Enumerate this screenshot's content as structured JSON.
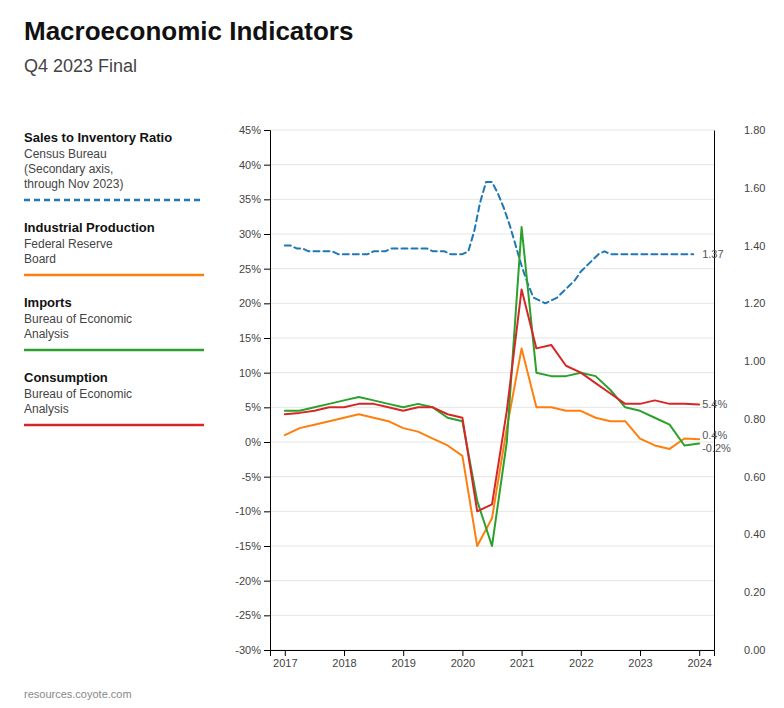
{
  "chart_data": {
    "type": "line",
    "title": "Macroeconomic Indicators",
    "subtitle": "Q4 2023 Final",
    "footer": "resources.coyote.com",
    "legend": "left",
    "grid": true,
    "xlim": [
      2016.75,
      2024.25
    ],
    "xticks": [
      2017,
      2018,
      2019,
      2020,
      2021,
      2022,
      2023,
      2024
    ],
    "ylim": [
      -30,
      45
    ],
    "yticks": [
      {
        "value": -30,
        "label": "-30%"
      },
      {
        "value": -25,
        "label": "-25%"
      },
      {
        "value": -20,
        "label": "-20%"
      },
      {
        "value": -15,
        "label": "-15%"
      },
      {
        "value": -10,
        "label": "-10%"
      },
      {
        "value": -5,
        "label": "-5%"
      },
      {
        "value": 0,
        "label": "0%"
      },
      {
        "value": 5,
        "label": "5%"
      },
      {
        "value": 10,
        "label": "10%"
      },
      {
        "value": 15,
        "label": "15%"
      },
      {
        "value": 20,
        "label": "20%"
      },
      {
        "value": 25,
        "label": "25%"
      },
      {
        "value": 30,
        "label": "30%"
      },
      {
        "value": 35,
        "label": "35%"
      },
      {
        "value": 40,
        "label": "40%"
      },
      {
        "value": 45,
        "label": "45%"
      }
    ],
    "y2lim": [
      0.0,
      1.8
    ],
    "y2ticks": [
      {
        "value": 0.0,
        "label": "0.00"
      },
      {
        "value": 0.2,
        "label": "0.20"
      },
      {
        "value": 0.4,
        "label": "0.40"
      },
      {
        "value": 0.6,
        "label": "0.60"
      },
      {
        "value": 0.8,
        "label": "0.80"
      },
      {
        "value": 1.0,
        "label": "1.00"
      },
      {
        "value": 1.2,
        "label": "1.20"
      },
      {
        "value": 1.4,
        "label": "1.40"
      },
      {
        "value": 1.6,
        "label": "1.60"
      },
      {
        "value": 1.8,
        "label": "1.80"
      }
    ],
    "series": [
      {
        "name": "Sales to Inventory Ratio",
        "description": [
          "Census Bureau",
          "(Secondary axis,",
          "through Nov 2023)"
        ],
        "axis": "y2",
        "line_style": "dashed",
        "x": [
          2017.0,
          2017.1,
          2017.2,
          2017.3,
          2017.4,
          2017.5,
          2017.6,
          2017.7,
          2017.8,
          2017.9,
          2018.0,
          2018.1,
          2018.2,
          2018.3,
          2018.4,
          2018.5,
          2018.6,
          2018.7,
          2018.8,
          2018.9,
          2019.0,
          2019.1,
          2019.2,
          2019.3,
          2019.4,
          2019.5,
          2019.6,
          2019.7,
          2019.8,
          2019.9,
          2020.0,
          2020.1,
          2020.2,
          2020.3,
          2020.4,
          2020.5,
          2020.6,
          2020.7,
          2020.8,
          2020.9,
          2021.0,
          2021.1,
          2021.2,
          2021.3,
          2021.4,
          2021.5,
          2021.6,
          2021.7,
          2021.8,
          2021.9,
          2022.0,
          2022.1,
          2022.2,
          2022.3,
          2022.4,
          2022.5,
          2022.6,
          2022.7,
          2022.8,
          2022.9,
          2023.0,
          2023.1,
          2023.2,
          2023.3,
          2023.4,
          2023.5,
          2023.6,
          2023.7,
          2023.8,
          2023.9
        ],
        "values": [
          1.4,
          1.4,
          1.39,
          1.39,
          1.38,
          1.38,
          1.38,
          1.38,
          1.38,
          1.37,
          1.37,
          1.37,
          1.37,
          1.37,
          1.37,
          1.38,
          1.38,
          1.38,
          1.39,
          1.39,
          1.39,
          1.39,
          1.39,
          1.39,
          1.39,
          1.38,
          1.38,
          1.38,
          1.37,
          1.37,
          1.37,
          1.38,
          1.45,
          1.55,
          1.62,
          1.62,
          1.58,
          1.53,
          1.47,
          1.4,
          1.33,
          1.27,
          1.22,
          1.21,
          1.2,
          1.21,
          1.22,
          1.24,
          1.26,
          1.28,
          1.31,
          1.33,
          1.35,
          1.37,
          1.38,
          1.37,
          1.37,
          1.37,
          1.37,
          1.37,
          1.37,
          1.37,
          1.37,
          1.37,
          1.37,
          1.37,
          1.37,
          1.37,
          1.37,
          1.37
        ]
      },
      {
        "name": "Industrial Production",
        "description": [
          "Federal Reserve",
          "Board"
        ],
        "x": [
          2017.0,
          2017.25,
          2017.5,
          2017.75,
          2018.0,
          2018.25,
          2018.5,
          2018.75,
          2019.0,
          2019.25,
          2019.5,
          2019.75,
          2020.0,
          2020.25,
          2020.5,
          2020.75,
          2021.0,
          2021.25,
          2021.5,
          2021.75,
          2022.0,
          2022.25,
          2022.5,
          2022.75,
          2023.0,
          2023.25,
          2023.5,
          2023.75,
          2024.0
        ],
        "values": [
          1.0,
          2.0,
          2.5,
          3.0,
          3.5,
          4.0,
          3.5,
          3.0,
          2.0,
          1.5,
          0.5,
          -0.5,
          -2.0,
          -15.0,
          -11.0,
          2.0,
          13.5,
          5.0,
          5.0,
          4.5,
          4.5,
          3.5,
          3.0,
          3.0,
          0.5,
          -0.5,
          -1.0,
          0.5,
          0.4
        ]
      },
      {
        "name": "Imports",
        "description": [
          "Bureau of Economic",
          "Analysis"
        ],
        "x": [
          2017.0,
          2017.25,
          2017.5,
          2017.75,
          2018.0,
          2018.25,
          2018.5,
          2018.75,
          2019.0,
          2019.25,
          2019.5,
          2019.75,
          2020.0,
          2020.25,
          2020.5,
          2020.75,
          2021.0,
          2021.25,
          2021.5,
          2021.75,
          2022.0,
          2022.25,
          2022.5,
          2022.75,
          2023.0,
          2023.25,
          2023.5,
          2023.75,
          2024.0
        ],
        "values": [
          4.5,
          4.5,
          5.0,
          5.5,
          6.0,
          6.5,
          6.0,
          5.5,
          5.0,
          5.5,
          5.0,
          3.5,
          3.0,
          -8.5,
          -15.0,
          0.0,
          31.0,
          10.0,
          9.5,
          9.5,
          10.0,
          9.5,
          7.5,
          5.0,
          4.5,
          3.5,
          2.5,
          -0.5,
          -0.2
        ]
      },
      {
        "name": "Consumption",
        "description": [
          "Bureau of Economic",
          "Analysis"
        ],
        "x": [
          2017.0,
          2017.25,
          2017.5,
          2017.75,
          2018.0,
          2018.25,
          2018.5,
          2018.75,
          2019.0,
          2019.25,
          2019.5,
          2019.75,
          2020.0,
          2020.25,
          2020.5,
          2020.75,
          2021.0,
          2021.25,
          2021.5,
          2021.75,
          2022.0,
          2022.25,
          2022.5,
          2022.75,
          2023.0,
          2023.25,
          2023.5,
          2023.75,
          2024.0
        ],
        "values": [
          4.0,
          4.2,
          4.5,
          5.0,
          5.0,
          5.5,
          5.5,
          5.0,
          4.5,
          5.0,
          5.0,
          4.0,
          3.5,
          -10.0,
          -9.0,
          4.5,
          22.0,
          13.5,
          14.0,
          11.0,
          10.0,
          8.5,
          7.0,
          5.5,
          5.5,
          6.0,
          5.5,
          5.5,
          5.4
        ]
      }
    ],
    "annotations": [
      {
        "text": "1.37",
        "x": 2024.05,
        "y": 1.37,
        "axis": "y2"
      },
      {
        "text": "5.4%",
        "x": 2024.05,
        "y": 5.4
      },
      {
        "text": "0.4%",
        "x": 2024.05,
        "y": 0.4
      },
      {
        "text": "-0.2%",
        "x": 2024.05,
        "y": -0.2
      }
    ]
  }
}
